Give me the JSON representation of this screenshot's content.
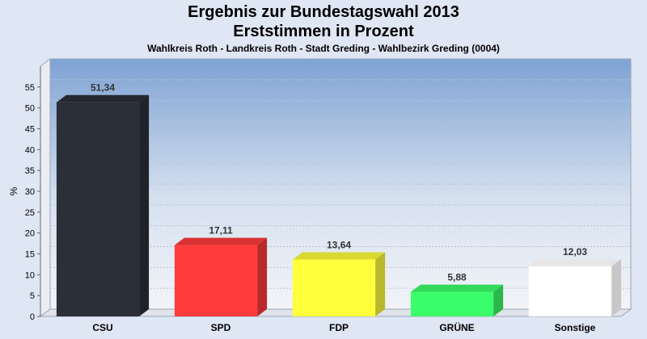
{
  "chart_data": {
    "type": "bar",
    "title": "Ergebnis zur Bundestagswahl 2013",
    "subtitle_line": "Erststimmen in Prozent",
    "caption": "Wahlkreis Roth - Landkreis Roth - Stadt Greding - Wahlbezirk Greding (0004)",
    "ylabel": "%",
    "xlabel": "",
    "ylim": [
      0,
      60
    ],
    "yticks": [
      0,
      5,
      10,
      15,
      20,
      25,
      30,
      35,
      40,
      45,
      50,
      55
    ],
    "grid": true,
    "categories": [
      "CSU",
      "SPD",
      "FDP",
      "GRÜNE",
      "Sonstige"
    ],
    "values": [
      51.34,
      17.11,
      13.64,
      5.88,
      12.03
    ],
    "value_labels": [
      "51,34",
      "17,11",
      "13,64",
      "5,88",
      "12,03"
    ],
    "colors": [
      "#2b2f38",
      "#ff3b3b",
      "#ffff3b",
      "#3bff6a",
      "#ffffff"
    ]
  }
}
